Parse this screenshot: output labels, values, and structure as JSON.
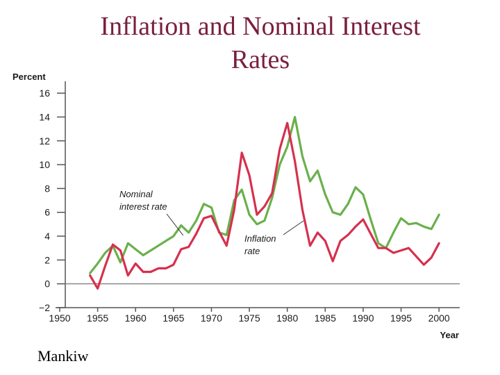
{
  "slide": {
    "title_line1": "Inflation and Nominal Interest",
    "title_line2": "Rates",
    "credit": "Mankiw"
  },
  "chart_data": {
    "type": "line",
    "ylabel": "Percent",
    "xlabel": "Year",
    "xlim": [
      1950,
      2002
    ],
    "ylim": [
      -2,
      17
    ],
    "x_ticks": [
      "1950",
      "1955",
      "1960",
      "1965",
      "1970",
      "1975",
      "1980",
      "1985",
      "1990",
      "1995",
      "2000"
    ],
    "y_ticks": [
      "−2",
      "0",
      "2",
      "4",
      "6",
      "8",
      "10",
      "12",
      "14",
      "16"
    ],
    "y_tick_values": [
      -2,
      0,
      2,
      4,
      6,
      8,
      10,
      12,
      14,
      16
    ],
    "x_tick_values": [
      1950,
      1955,
      1960,
      1965,
      1970,
      1975,
      1980,
      1985,
      1990,
      1995,
      2000
    ],
    "grid": false,
    "zero_line": true,
    "series": [
      {
        "name": "Nominal interest rate",
        "label_lines": [
          "Nominal",
          "interest rate"
        ],
        "color": "#6ab04c",
        "x": [
          1954,
          1955,
          1956,
          1957,
          1958,
          1959,
          1960,
          1961,
          1962,
          1963,
          1964,
          1965,
          1966,
          1967,
          1968,
          1969,
          1970,
          1971,
          1972,
          1973,
          1974,
          1975,
          1976,
          1977,
          1978,
          1979,
          1980,
          1981,
          1982,
          1983,
          1984,
          1985,
          1986,
          1987,
          1988,
          1989,
          1990,
          1991,
          1992,
          1993,
          1994,
          1995,
          1996,
          1997,
          1998,
          1999,
          2000
        ],
        "y": [
          0.9,
          1.7,
          2.6,
          3.2,
          1.8,
          3.4,
          2.9,
          2.4,
          2.8,
          3.2,
          3.6,
          4.0,
          4.9,
          4.3,
          5.3,
          6.7,
          6.4,
          4.3,
          4.1,
          7.0,
          7.9,
          5.8,
          5.0,
          5.3,
          7.2,
          10.0,
          11.5,
          14.0,
          10.7,
          8.6,
          9.5,
          7.5,
          6.0,
          5.8,
          6.7,
          8.1,
          7.5,
          5.4,
          3.4,
          3.0,
          4.3,
          5.5,
          5.0,
          5.1,
          4.8,
          4.6,
          5.8
        ]
      },
      {
        "name": "Inflation rate",
        "label_lines": [
          "Inflation",
          "rate"
        ],
        "color": "#d6304e",
        "x": [
          1954,
          1955,
          1956,
          1957,
          1958,
          1959,
          1960,
          1961,
          1962,
          1963,
          1964,
          1965,
          1966,
          1967,
          1968,
          1969,
          1970,
          1971,
          1972,
          1973,
          1974,
          1975,
          1976,
          1977,
          1978,
          1979,
          1980,
          1981,
          1982,
          1983,
          1984,
          1985,
          1986,
          1987,
          1988,
          1989,
          1990,
          1991,
          1992,
          1993,
          1994,
          1995,
          1996,
          1997,
          1998,
          1999,
          2000
        ],
        "y": [
          0.7,
          -0.4,
          1.5,
          3.3,
          2.8,
          0.7,
          1.7,
          1.0,
          1.0,
          1.3,
          1.3,
          1.6,
          2.9,
          3.1,
          4.2,
          5.5,
          5.7,
          4.4,
          3.2,
          6.2,
          11.0,
          9.1,
          5.8,
          6.5,
          7.6,
          11.3,
          13.5,
          10.3,
          6.2,
          3.2,
          4.3,
          3.6,
          1.9,
          3.6,
          4.1,
          4.8,
          5.4,
          4.2,
          3.0,
          3.0,
          2.6,
          2.8,
          3.0,
          2.3,
          1.6,
          2.2,
          3.4
        ]
      }
    ],
    "annotations": [
      {
        "series": 0,
        "text_lines": [
          "Nominal",
          "interest rate"
        ],
        "pointer_year": 1967
      },
      {
        "series": 1,
        "text_lines": [
          "Inflation",
          "rate"
        ],
        "pointer_year": 1982
      }
    ]
  }
}
